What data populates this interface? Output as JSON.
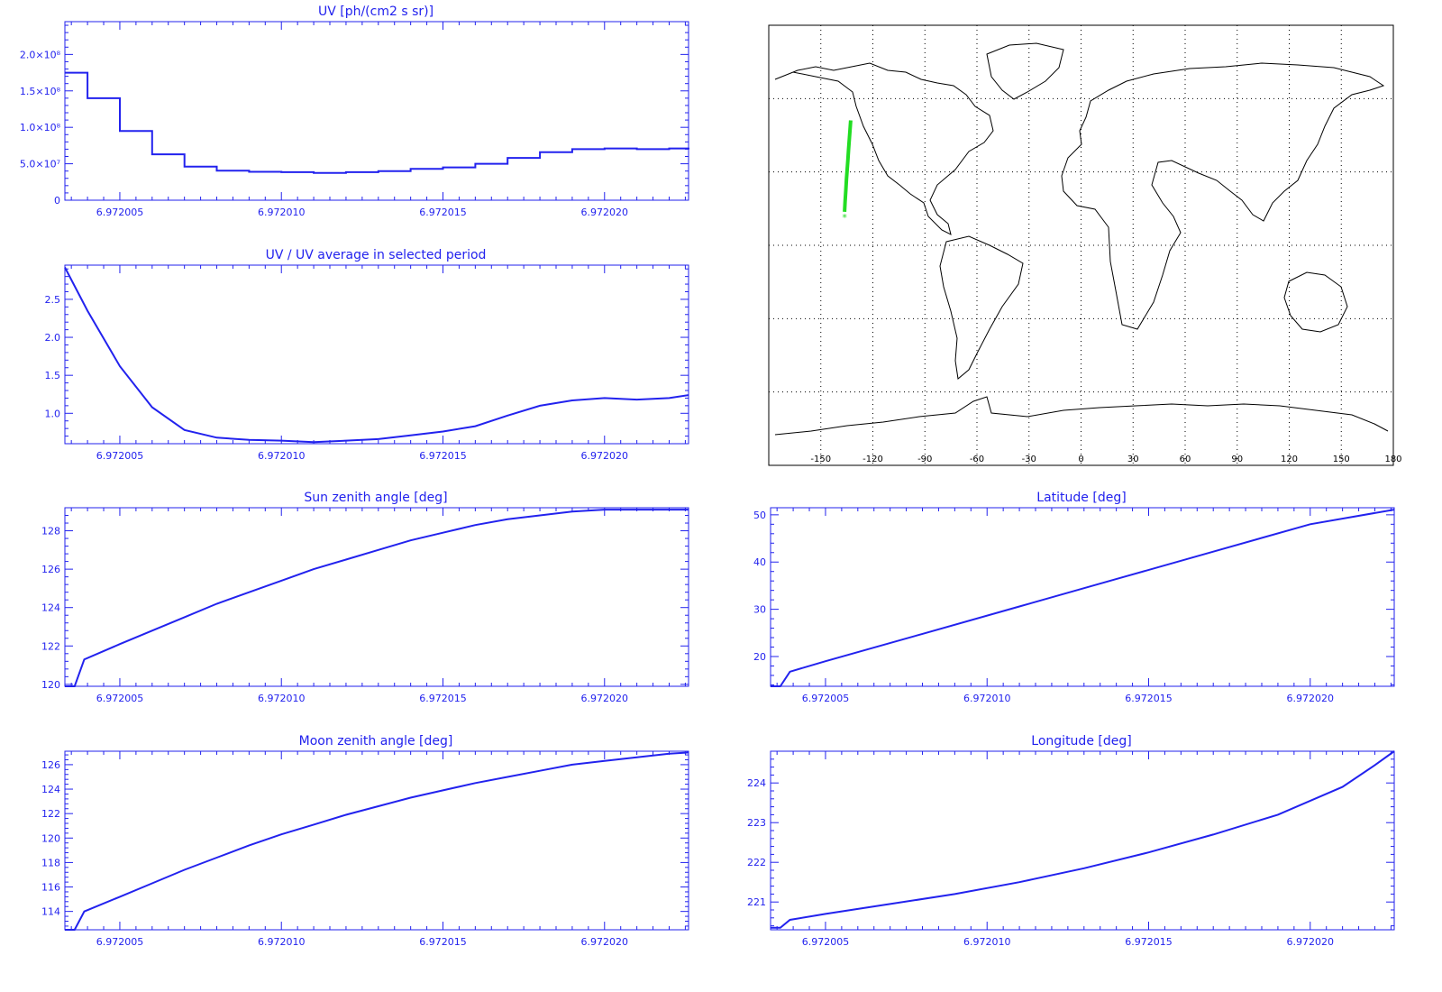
{
  "colors": {
    "axis": "#2222ee",
    "line": "#2222ee",
    "map_frame": "#000000",
    "coast": "#000000",
    "track": "#22dd22"
  },
  "chart_data": [
    {
      "id": "uv",
      "type": "line",
      "style": "step",
      "title": "UV [ph/(cm2 s sr)]",
      "xlim": [
        6.9720033,
        6.9720226
      ],
      "ylim": [
        0,
        245000000.0
      ],
      "xticks": [
        6.972005,
        6.97201,
        6.972015,
        6.97202
      ],
      "xtick_labels": [
        "6.972005",
        "6.972010",
        "6.972015",
        "6.972020"
      ],
      "yticks": [
        0,
        50000000.0,
        100000000.0,
        150000000.0,
        200000000.0
      ],
      "ytick_labels": [
        "0",
        "5.0×10⁷",
        "1.0×10⁸",
        "1.5×10⁸",
        "2.0×10⁸"
      ],
      "series": [
        {
          "x": [
            6.9720033,
            6.972004,
            6.972005,
            6.972006,
            6.972007,
            6.972008,
            6.972009,
            6.97201,
            6.972011,
            6.972012,
            6.972013,
            6.972014,
            6.972015,
            6.972016,
            6.972017,
            6.972018,
            6.972019,
            6.97202,
            6.972021,
            6.972022,
            6.9720226
          ],
          "y": [
            175000000.0,
            140000000.0,
            95000000.0,
            63000000.0,
            46000000.0,
            40500000.0,
            39000000.0,
            38500000.0,
            37500000.0,
            38500000.0,
            40000000.0,
            43000000.0,
            45000000.0,
            50000000.0,
            58000000.0,
            66000000.0,
            70000000.0,
            71000000.0,
            70000000.0,
            71000000.0,
            72000000.0
          ]
        }
      ]
    },
    {
      "id": "uv-ratio",
      "type": "line",
      "title": "UV / UV average in selected period",
      "xlim": [
        6.9720033,
        6.9720226
      ],
      "ylim": [
        0.6,
        2.95
      ],
      "xticks": [
        6.972005,
        6.97201,
        6.972015,
        6.97202
      ],
      "xtick_labels": [
        "6.972005",
        "6.972010",
        "6.972015",
        "6.972020"
      ],
      "yticks": [
        1.0,
        1.5,
        2.0,
        2.5
      ],
      "ytick_labels": [
        "1.0",
        "1.5",
        "2.0",
        "2.5"
      ],
      "series": [
        {
          "x": [
            6.9720033,
            6.972004,
            6.972005,
            6.972006,
            6.972007,
            6.972008,
            6.972009,
            6.97201,
            6.972011,
            6.972012,
            6.972013,
            6.972014,
            6.972015,
            6.972016,
            6.972017,
            6.972018,
            6.972019,
            6.97202,
            6.972021,
            6.972022,
            6.9720226
          ],
          "y": [
            2.92,
            2.35,
            1.62,
            1.08,
            0.78,
            0.68,
            0.65,
            0.64,
            0.62,
            0.64,
            0.66,
            0.71,
            0.76,
            0.83,
            0.97,
            1.1,
            1.17,
            1.2,
            1.18,
            1.2,
            1.24
          ]
        }
      ]
    },
    {
      "id": "sun-zenith",
      "type": "line",
      "title": "Sun zenith angle [deg]",
      "xlim": [
        6.9720033,
        6.9720226
      ],
      "ylim": [
        119.9,
        129.2
      ],
      "xticks": [
        6.972005,
        6.97201,
        6.972015,
        6.97202
      ],
      "xtick_labels": [
        "6.972005",
        "6.972010",
        "6.972015",
        "6.972020"
      ],
      "yticks": [
        120,
        122,
        124,
        126,
        128
      ],
      "ytick_labels": [
        "120",
        "122",
        "124",
        "126",
        "128"
      ],
      "series": [
        {
          "x": [
            6.9720033,
            6.9720036,
            6.9720039,
            6.972005,
            6.972006,
            6.972007,
            6.972008,
            6.972009,
            6.97201,
            6.972011,
            6.972012,
            6.972013,
            6.972014,
            6.972015,
            6.972016,
            6.972017,
            6.972018,
            6.972019,
            6.97202,
            6.972021,
            6.972022,
            6.9720226
          ],
          "y": [
            119.9,
            119.9,
            121.3,
            122.1,
            122.8,
            123.5,
            124.2,
            124.8,
            125.4,
            126.0,
            126.5,
            127.0,
            127.5,
            127.9,
            128.3,
            128.6,
            128.8,
            129.0,
            129.1,
            129.1,
            129.1,
            129.1
          ]
        }
      ]
    },
    {
      "id": "moon-zenith",
      "type": "line",
      "title": "Moon zenith angle [deg]",
      "xlim": [
        6.9720033,
        6.9720226
      ],
      "ylim": [
        112.5,
        127.1
      ],
      "xticks": [
        6.972005,
        6.97201,
        6.972015,
        6.97202
      ],
      "xtick_labels": [
        "6.972005",
        "6.972010",
        "6.972015",
        "6.972020"
      ],
      "yticks": [
        114,
        116,
        118,
        120,
        122,
        124,
        126
      ],
      "ytick_labels": [
        "114",
        "116",
        "118",
        "120",
        "122",
        "124",
        "126"
      ],
      "series": [
        {
          "x": [
            6.9720033,
            6.9720036,
            6.9720039,
            6.972005,
            6.972006,
            6.972007,
            6.972008,
            6.972009,
            6.97201,
            6.972011,
            6.972012,
            6.972013,
            6.972014,
            6.972015,
            6.972016,
            6.972017,
            6.972018,
            6.972019,
            6.97202,
            6.972021,
            6.972022,
            6.9720226
          ],
          "y": [
            112.5,
            112.5,
            114.0,
            115.2,
            116.3,
            117.4,
            118.4,
            119.4,
            120.3,
            121.1,
            121.9,
            122.6,
            123.3,
            123.9,
            124.5,
            125.0,
            125.5,
            126.0,
            126.3,
            126.6,
            126.9,
            127.0
          ]
        }
      ]
    },
    {
      "id": "latitude",
      "type": "line",
      "title": "Latitude [deg]",
      "xlim": [
        6.9720033,
        6.9720226
      ],
      "ylim": [
        13.7,
        51.5
      ],
      "xticks": [
        6.972005,
        6.97201,
        6.972015,
        6.97202
      ],
      "xtick_labels": [
        "6.972005",
        "6.972010",
        "6.972015",
        "6.972020"
      ],
      "yticks": [
        20,
        30,
        40,
        50
      ],
      "ytick_labels": [
        "20",
        "30",
        "40",
        "50"
      ],
      "series": [
        {
          "x": [
            6.9720033,
            6.9720036,
            6.9720039,
            6.972005,
            6.972008,
            6.972011,
            6.972014,
            6.972017,
            6.97202,
            6.9720226
          ],
          "y": [
            13.7,
            13.7,
            16.8,
            19.0,
            24.8,
            30.6,
            36.4,
            42.2,
            48.0,
            51.1
          ]
        }
      ]
    },
    {
      "id": "longitude",
      "type": "line",
      "title": "Longitude [deg]",
      "xlim": [
        6.9720033,
        6.9720226
      ],
      "ylim": [
        220.3,
        224.8
      ],
      "xticks": [
        6.972005,
        6.97201,
        6.972015,
        6.97202
      ],
      "xtick_labels": [
        "6.972005",
        "6.972010",
        "6.972015",
        "6.972020"
      ],
      "yticks": [
        221,
        222,
        223,
        224
      ],
      "ytick_labels": [
        "221",
        "222",
        "223",
        "224"
      ],
      "series": [
        {
          "x": [
            6.9720033,
            6.9720036,
            6.9720039,
            6.972005,
            6.972007,
            6.972009,
            6.972011,
            6.972013,
            6.972015,
            6.972017,
            6.972019,
            6.972021,
            6.972022,
            6.9720226
          ],
          "y": [
            220.35,
            220.35,
            220.55,
            220.7,
            220.95,
            221.2,
            221.5,
            221.85,
            222.25,
            222.7,
            223.2,
            223.9,
            224.45,
            224.8
          ]
        }
      ]
    },
    {
      "id": "world-map",
      "type": "scatter",
      "xlim": [
        -180,
        180
      ],
      "ylim": [
        -90,
        90
      ],
      "xticks": [
        -150,
        -120,
        -90,
        -60,
        -30,
        0,
        30,
        60,
        90,
        120,
        150,
        180
      ],
      "xtick_labels": [
        "-150",
        "-120",
        "-90",
        "-60",
        "-30",
        "0",
        "30",
        "60",
        "90",
        "120",
        "150",
        "180"
      ],
      "track": {
        "lon": [
          -136.3,
          -136.0,
          -135.6,
          -135.2,
          -134.8,
          -134.4,
          -134.0,
          -133.6,
          -133.2,
          -132.8
        ],
        "lat": [
          13.7,
          18.0,
          22.5,
          27.0,
          31.0,
          35.0,
          39.0,
          43.0,
          47.0,
          51.1
        ]
      },
      "marker": {
        "lon": -136.3,
        "lat": 11.5,
        "symbol": "*"
      }
    }
  ]
}
